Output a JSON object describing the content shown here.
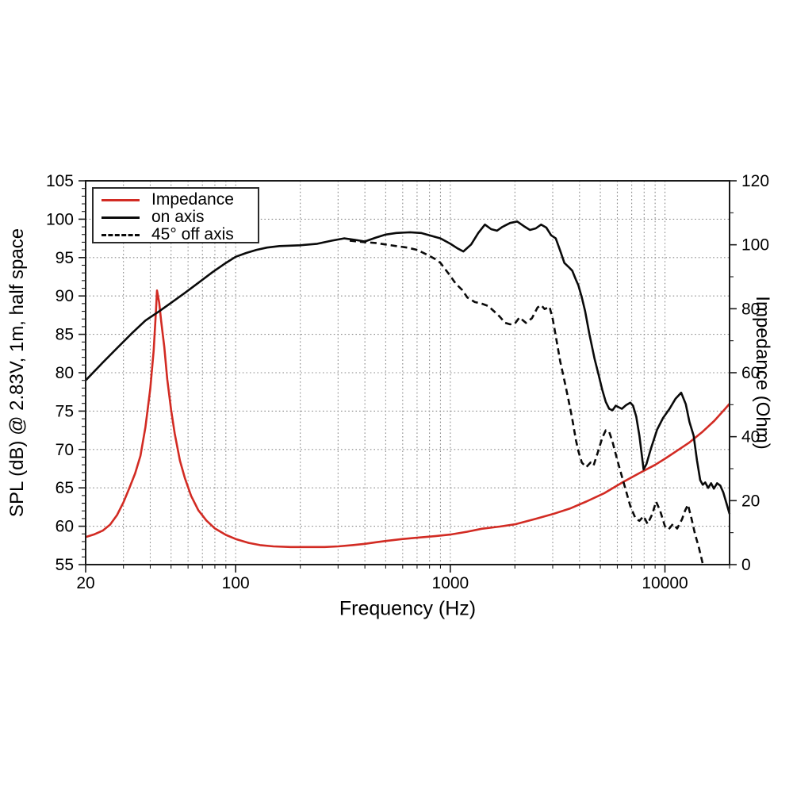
{
  "chart_data": {
    "type": "line",
    "x_axis": {
      "label": "Frequency (Hz)",
      "scale": "log",
      "min": 20,
      "max": 20000,
      "ticks": [
        20,
        100,
        1000,
        10000
      ]
    },
    "y_left": {
      "label": "SPL (dB) @ 2.83V, 1m, half space",
      "min": 55,
      "max": 105,
      "tick_step": 5,
      "minor_step": 1
    },
    "y_right": {
      "label": "Impedance (Ohm)",
      "min": 0,
      "max": 120,
      "tick_step": 20,
      "minor_step": 10
    },
    "grid": {
      "on": true,
      "style": "dotted",
      "color": "#8a8a8a"
    },
    "frame_color": "#1a1a1a",
    "legend": {
      "position": "top-left",
      "entries": [
        {
          "label": "Impedance",
          "color": "#d22b23",
          "style": "solid"
        },
        {
          "label": "on axis",
          "color": "#0a0a0a",
          "style": "solid"
        },
        {
          "label": "45° off axis",
          "color": "#0a0a0a",
          "style": "dashed"
        }
      ]
    },
    "series": [
      {
        "name": "Impedance",
        "axis": "right",
        "unit": "Ohm",
        "color": "#d22b23",
        "style": "solid",
        "points": [
          [
            20,
            8.6
          ],
          [
            22,
            9.5
          ],
          [
            24,
            10.6
          ],
          [
            26,
            12.5
          ],
          [
            28,
            15.5
          ],
          [
            30,
            19.5
          ],
          [
            32,
            24
          ],
          [
            34,
            28.5
          ],
          [
            36,
            34
          ],
          [
            38,
            43
          ],
          [
            40,
            55
          ],
          [
            41.5,
            67
          ],
          [
            42.5,
            79
          ],
          [
            43,
            85.7
          ],
          [
            44,
            82
          ],
          [
            45,
            76
          ],
          [
            46.5,
            68
          ],
          [
            48,
            58
          ],
          [
            50,
            48.5
          ],
          [
            52,
            41
          ],
          [
            55,
            32.5
          ],
          [
            58,
            27
          ],
          [
            62,
            21.5
          ],
          [
            67,
            17
          ],
          [
            73,
            13.8
          ],
          [
            80,
            11.3
          ],
          [
            90,
            9.3
          ],
          [
            100,
            8.0
          ],
          [
            115,
            6.8
          ],
          [
            130,
            6.1
          ],
          [
            150,
            5.7
          ],
          [
            180,
            5.5
          ],
          [
            220,
            5.5
          ],
          [
            260,
            5.5
          ],
          [
            300,
            5.7
          ],
          [
            350,
            6.1
          ],
          [
            400,
            6.5
          ],
          [
            450,
            7.0
          ],
          [
            500,
            7.4
          ],
          [
            600,
            8.0
          ],
          [
            700,
            8.4
          ],
          [
            850,
            8.9
          ],
          [
            1000,
            9.4
          ],
          [
            1200,
            10.3
          ],
          [
            1400,
            11.2
          ],
          [
            1700,
            11.9
          ],
          [
            2000,
            12.6
          ],
          [
            2500,
            14.3
          ],
          [
            3000,
            15.8
          ],
          [
            3600,
            17.5
          ],
          [
            4300,
            19.7
          ],
          [
            5200,
            22.3
          ],
          [
            6300,
            25.6
          ],
          [
            7600,
            28.6
          ],
          [
            9000,
            31.2
          ],
          [
            10000,
            33.1
          ],
          [
            11500,
            35.8
          ],
          [
            13000,
            38.2
          ],
          [
            15000,
            41.6
          ],
          [
            17000,
            45.0
          ],
          [
            19000,
            48.6
          ],
          [
            20000,
            50.3
          ]
        ]
      },
      {
        "name": "on axis",
        "axis": "left",
        "unit": "dB",
        "color": "#0a0a0a",
        "style": "solid",
        "points": [
          [
            20,
            79.0
          ],
          [
            24,
            81.3
          ],
          [
            28,
            83.2
          ],
          [
            33,
            85.2
          ],
          [
            38,
            86.8
          ],
          [
            44,
            88.0
          ],
          [
            50,
            89.1
          ],
          [
            58,
            90.4
          ],
          [
            67,
            91.7
          ],
          [
            78,
            93.1
          ],
          [
            90,
            94.3
          ],
          [
            100,
            95.1
          ],
          [
            112,
            95.6
          ],
          [
            125,
            96.0
          ],
          [
            140,
            96.3
          ],
          [
            160,
            96.5
          ],
          [
            200,
            96.6
          ],
          [
            240,
            96.8
          ],
          [
            280,
            97.2
          ],
          [
            320,
            97.5
          ],
          [
            360,
            97.3
          ],
          [
            400,
            97.1
          ],
          [
            450,
            97.6
          ],
          [
            500,
            98.0
          ],
          [
            560,
            98.2
          ],
          [
            650,
            98.3
          ],
          [
            730,
            98.2
          ],
          [
            800,
            97.9
          ],
          [
            900,
            97.5
          ],
          [
            1000,
            96.8
          ],
          [
            1080,
            96.2
          ],
          [
            1150,
            95.8
          ],
          [
            1250,
            96.7
          ],
          [
            1350,
            98.2
          ],
          [
            1450,
            99.3
          ],
          [
            1550,
            98.7
          ],
          [
            1650,
            98.5
          ],
          [
            1750,
            99.0
          ],
          [
            1900,
            99.5
          ],
          [
            2050,
            99.7
          ],
          [
            2200,
            99.1
          ],
          [
            2350,
            98.6
          ],
          [
            2500,
            98.8
          ],
          [
            2650,
            99.3
          ],
          [
            2800,
            98.9
          ],
          [
            2950,
            97.9
          ],
          [
            3100,
            97.5
          ],
          [
            3250,
            95.9
          ],
          [
            3400,
            94.3
          ],
          [
            3550,
            93.8
          ],
          [
            3700,
            93.3
          ],
          [
            3850,
            92.1
          ],
          [
            3950,
            91.4
          ],
          [
            4100,
            89.8
          ],
          [
            4250,
            88.0
          ],
          [
            4450,
            85.0
          ],
          [
            4700,
            81.8
          ],
          [
            4900,
            79.8
          ],
          [
            5100,
            77.8
          ],
          [
            5300,
            76.2
          ],
          [
            5500,
            75.3
          ],
          [
            5700,
            75.1
          ],
          [
            5900,
            75.7
          ],
          [
            6100,
            75.5
          ],
          [
            6300,
            75.3
          ],
          [
            6600,
            75.8
          ],
          [
            6900,
            76.1
          ],
          [
            7100,
            75.7
          ],
          [
            7350,
            74.3
          ],
          [
            7600,
            71.8
          ],
          [
            7950,
            67.4
          ],
          [
            8200,
            68.1
          ],
          [
            8600,
            70.1
          ],
          [
            9200,
            72.6
          ],
          [
            9800,
            74.1
          ],
          [
            10500,
            75.3
          ],
          [
            11200,
            76.6
          ],
          [
            11900,
            77.4
          ],
          [
            12500,
            75.9
          ],
          [
            13000,
            73.6
          ],
          [
            13600,
            71.8
          ],
          [
            14100,
            68.6
          ],
          [
            14600,
            66.0
          ],
          [
            15000,
            65.4
          ],
          [
            15400,
            65.7
          ],
          [
            15900,
            65.0
          ],
          [
            16400,
            65.6
          ],
          [
            16900,
            64.9
          ],
          [
            17500,
            65.6
          ],
          [
            18100,
            65.3
          ],
          [
            18700,
            64.4
          ],
          [
            19300,
            63.1
          ],
          [
            20000,
            61.6
          ]
        ]
      },
      {
        "name": "45° off axis",
        "axis": "left",
        "unit": "dB",
        "color": "#0a0a0a",
        "style": "dashed",
        "points": [
          [
            340,
            97.2
          ],
          [
            400,
            97.0
          ],
          [
            450,
            96.9
          ],
          [
            500,
            96.7
          ],
          [
            560,
            96.5
          ],
          [
            630,
            96.3
          ],
          [
            700,
            96.0
          ],
          [
            790,
            95.3
          ],
          [
            850,
            94.8
          ],
          [
            900,
            94.3
          ],
          [
            1000,
            92.6
          ],
          [
            1060,
            91.6
          ],
          [
            1135,
            90.8
          ],
          [
            1200,
            89.8
          ],
          [
            1300,
            89.2
          ],
          [
            1400,
            89.0
          ],
          [
            1500,
            88.7
          ],
          [
            1600,
            88.0
          ],
          [
            1700,
            87.3
          ],
          [
            1800,
            86.5
          ],
          [
            1900,
            86.3
          ],
          [
            2000,
            86.4
          ],
          [
            2100,
            87.2
          ],
          [
            2250,
            86.5
          ],
          [
            2400,
            87.1
          ],
          [
            2550,
            88.5
          ],
          [
            2650,
            88.8
          ],
          [
            2750,
            88.3
          ],
          [
            2900,
            88.6
          ],
          [
            3000,
            87.0
          ],
          [
            3100,
            84.8
          ],
          [
            3250,
            81.5
          ],
          [
            3400,
            79.0
          ],
          [
            3550,
            76.5
          ],
          [
            3700,
            74.0
          ],
          [
            3850,
            71.2
          ],
          [
            3950,
            69.8
          ],
          [
            4100,
            68.3
          ],
          [
            4300,
            67.7
          ],
          [
            4500,
            68.3
          ],
          [
            4650,
            67.9
          ],
          [
            4850,
            69.5
          ],
          [
            5100,
            71.5
          ],
          [
            5300,
            72.5
          ],
          [
            5500,
            72.3
          ],
          [
            5700,
            71.0
          ],
          [
            6000,
            68.6
          ],
          [
            6300,
            66.5
          ],
          [
            6600,
            64.5
          ],
          [
            6900,
            62.6
          ],
          [
            7300,
            61.0
          ],
          [
            7600,
            60.7
          ],
          [
            7950,
            61.3
          ],
          [
            8300,
            60.3
          ],
          [
            8700,
            61.5
          ],
          [
            9100,
            63.2
          ],
          [
            9500,
            62.0
          ],
          [
            10000,
            60.0
          ],
          [
            10400,
            59.6
          ],
          [
            10900,
            60.3
          ],
          [
            11400,
            59.7
          ],
          [
            12000,
            60.9
          ],
          [
            12400,
            62.0
          ],
          [
            12800,
            62.8
          ],
          [
            13300,
            61.0
          ],
          [
            13800,
            59.0
          ],
          [
            14400,
            57.2
          ],
          [
            15000,
            55.1
          ]
        ]
      }
    ]
  }
}
